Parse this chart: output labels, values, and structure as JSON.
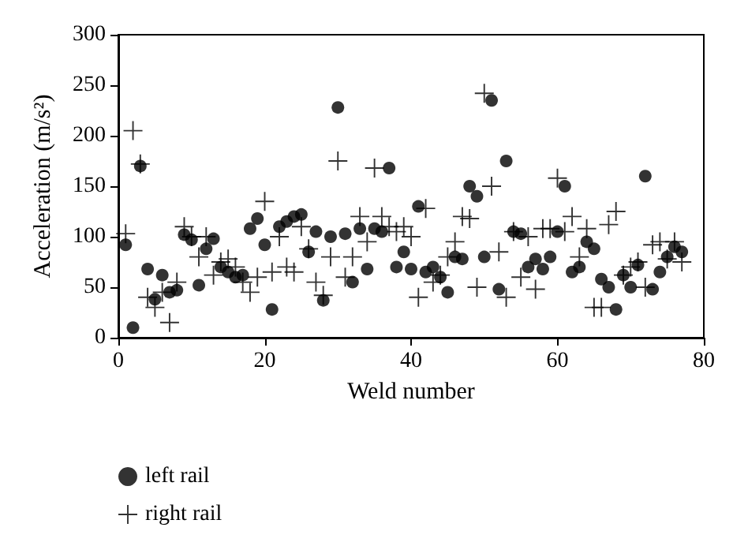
{
  "chart_data": {
    "type": "scatter",
    "xlabel": "Weld number",
    "ylabel": "Acceleration (m/s²)",
    "xlim": [
      0,
      80
    ],
    "xticks": [
      0,
      20,
      40,
      60,
      80
    ],
    "ylim": [
      0,
      300
    ],
    "yticks": [
      0,
      50,
      100,
      150,
      200,
      250,
      300
    ],
    "grid": false,
    "legend": "bottom left",
    "x": [
      1,
      2,
      3,
      4,
      5,
      6,
      7,
      8,
      9,
      10,
      11,
      12,
      13,
      14,
      15,
      16,
      17,
      18,
      19,
      20,
      21,
      22,
      23,
      24,
      25,
      26,
      27,
      28,
      29,
      30,
      31,
      32,
      33,
      34,
      35,
      36,
      37,
      38,
      39,
      40,
      41,
      42,
      43,
      44,
      45,
      46,
      47,
      48,
      49,
      50,
      51,
      52,
      53,
      54,
      55,
      56,
      57,
      58,
      59,
      60,
      61,
      62,
      63,
      64,
      65,
      66,
      67,
      68,
      69,
      70,
      71,
      72,
      73,
      74,
      75,
      76,
      77
    ],
    "series": [
      {
        "name": "left rail",
        "color": "#000000",
        "marker": "circle",
        "values": [
          92,
          10,
          170,
          68,
          38,
          62,
          45,
          47,
          102,
          97,
          52,
          88,
          98,
          70,
          65,
          60,
          62,
          108,
          118,
          92,
          28,
          110,
          115,
          120,
          122,
          85,
          105,
          37,
          100,
          228,
          103,
          55,
          108,
          68,
          108,
          105,
          168,
          70,
          85,
          68,
          130,
          65,
          70,
          60,
          45,
          80,
          78,
          150,
          140,
          80,
          235,
          48,
          175,
          105,
          103,
          70,
          78,
          68,
          80,
          105,
          150,
          65,
          70,
          95,
          88,
          58,
          50,
          28,
          62,
          50,
          72,
          160,
          48,
          65,
          80,
          90,
          85
        ]
      },
      {
        "name": "right rail",
        "color": "#000000",
        "marker": "cross",
        "values": [
          103,
          205,
          172,
          40,
          30,
          45,
          15,
          55,
          110,
          100,
          80,
          100,
          62,
          75,
          78,
          70,
          55,
          45,
          60,
          135,
          65,
          100,
          70,
          65,
          110,
          88,
          55,
          42,
          80,
          175,
          60,
          80,
          120,
          95,
          168,
          120,
          110,
          105,
          110,
          100,
          40,
          128,
          55,
          62,
          80,
          95,
          120,
          118,
          50,
          242,
          150,
          85,
          40,
          105,
          60,
          100,
          48,
          108,
          108,
          158,
          105,
          120,
          80,
          108,
          30,
          30,
          112,
          125,
          62,
          70,
          75,
          50,
          92,
          95,
          78,
          95,
          75
        ]
      }
    ]
  }
}
